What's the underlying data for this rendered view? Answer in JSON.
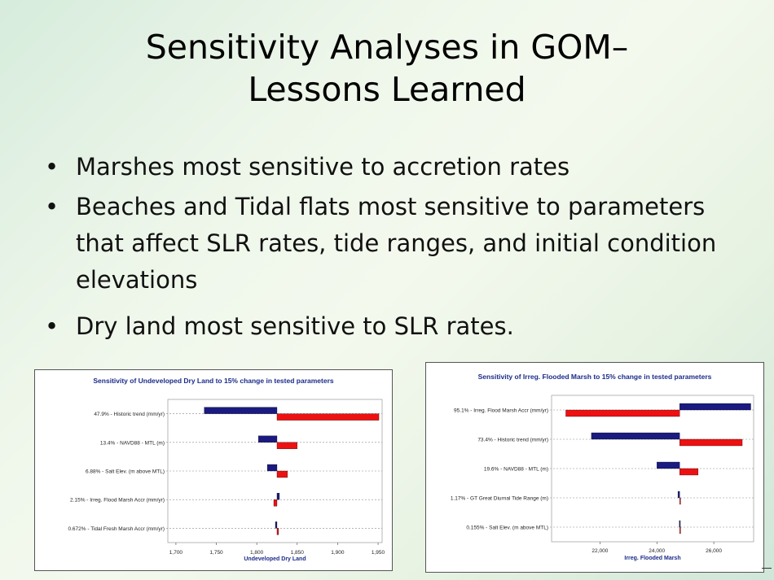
{
  "slide": {
    "title_line1": "Sensitivity Analyses in GOM–",
    "title_line2": "Lessons Learned",
    "bullets": [
      "Marshes most sensitive to accretion rates",
      "Beaches and Tidal flats most sensitive to parameters that affect SLR rates, tide ranges, and initial condition elevations",
      "Dry land most sensitive to SLR rates."
    ],
    "bullet_char": "•"
  },
  "colors": {
    "low_bar": "#1a1a80",
    "high_bar": "#ee1111"
  },
  "chart_data": [
    {
      "type": "bar",
      "orientation": "horizontal-tornado",
      "title": "Sensitivity of Undeveloped Dry Land to 15% change in tested parameters",
      "xlabel": "Undeveloped Dry Land",
      "baseline": 1825,
      "xlim": [
        1690,
        1955
      ],
      "xticks": [
        1700,
        1750,
        1800,
        1850,
        1900,
        1950
      ],
      "xtick_labels": [
        "1,700",
        "1,750",
        "1,800",
        "1,850",
        "1,900",
        "1,950"
      ],
      "categories": [
        "47.9% - Historic trend (mm/yr)",
        "13.4% - NAVD88 - MTL (m)",
        "6.88% - Salt Elev. (m above MTL)",
        "2.15% - Irreg. Flood Marsh Accr (mm/yr)",
        "0.672% - Tidal Fresh Marsh Accr (mm/yr)"
      ],
      "series": [
        {
          "name": "low",
          "values": [
            1735,
            1802,
            1813,
            1828,
            1823
          ]
        },
        {
          "name": "high",
          "values": [
            1951,
            1850,
            1838,
            1821,
            1827
          ]
        }
      ]
    },
    {
      "type": "bar",
      "orientation": "horizontal-tornado",
      "title": "Sensitivity of Irreg. Flooded Marsh to 15% change in tested parameters",
      "xlabel": "Irreg. Flooded Marsh",
      "baseline": 24800,
      "xlim": [
        20300,
        27400
      ],
      "xticks": [
        22000,
        24000,
        26000
      ],
      "xtick_labels": [
        "22,000",
        "24,000",
        "26,000"
      ],
      "categories": [
        "95.1% - Irreg. Flood Marsh Accr (mm/yr)",
        "73.4% - Historic trend (mm/yr)",
        "19.6% - NAVD88 - MTL (m)",
        "1.17% - GT Great Diurnal Tide Range (m)",
        "0.155% - Salt Elev. (m above MTL)"
      ],
      "series": [
        {
          "name": "low",
          "values": [
            27300,
            21700,
            24000,
            24740,
            24790
          ]
        },
        {
          "name": "high",
          "values": [
            20800,
            27000,
            25450,
            24820,
            24810
          ]
        }
      ]
    }
  ]
}
